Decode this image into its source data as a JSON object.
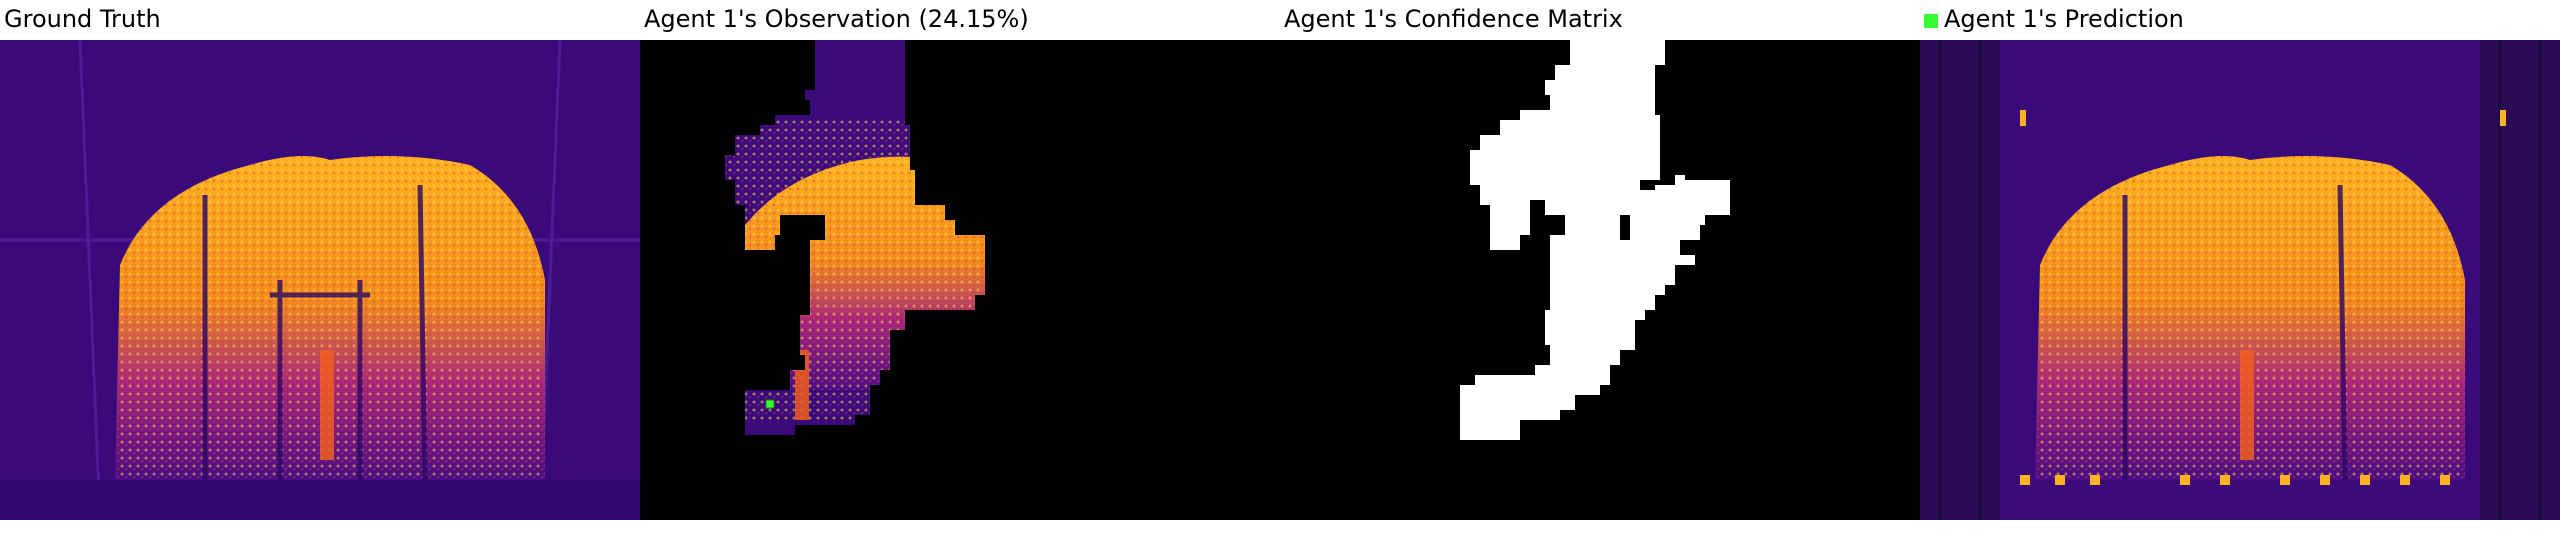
{
  "panels": {
    "ground_truth": {
      "title": "Ground Truth"
    },
    "observation": {
      "title": "Agent 1's Observation (24.15%)"
    },
    "confidence": {
      "title": "Agent 1's Confidence Matrix"
    },
    "prediction": {
      "title": "Agent 1's Prediction",
      "legend_color": "#33ff33"
    }
  },
  "colors": {
    "background": "#3b0a7a",
    "hot": "#ffb21f",
    "warm": "#f05d20",
    "mid": "#a21f8a",
    "mask_black": "#000000",
    "mask_white": "#ffffff",
    "agent_marker": "#33ff33"
  },
  "colormap": "plasma/inferno-like heat map"
}
